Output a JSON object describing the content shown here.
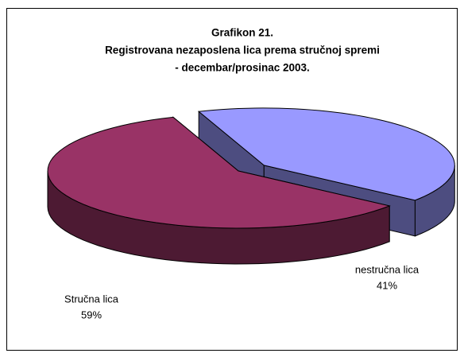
{
  "chart_data": {
    "type": "pie",
    "title": [
      "Grafikon 21.",
      "Registrovana nezaposlena lica prema stručnoj spremi",
      "- decembar/prosinac 2003."
    ],
    "categories": [
      "nestručna lica",
      "Stručna lica"
    ],
    "values": [
      41,
      59
    ],
    "value_labels": [
      "41%",
      "59%"
    ],
    "colors": [
      "#9999ff",
      "#993366"
    ]
  }
}
